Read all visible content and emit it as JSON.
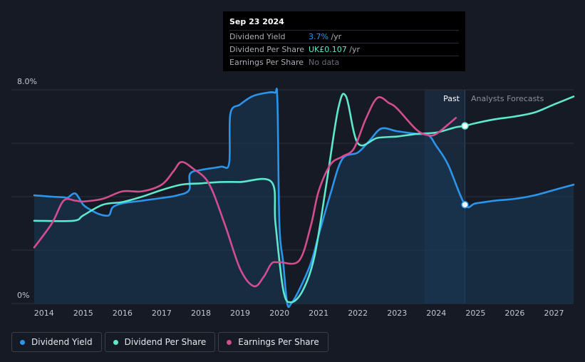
{
  "tooltip": {
    "date": "Sep 23 2024",
    "rows": [
      {
        "label": "Dividend Yield",
        "value": "3.7%",
        "unit": " /yr"
      },
      {
        "label": "Dividend Per Share",
        "value": "UK£0.107",
        "unit": " /yr"
      },
      {
        "label": "Earnings Per Share",
        "value": "No data"
      }
    ]
  },
  "legend": [
    {
      "label": "Dividend Yield",
      "color": "#2c95ea"
    },
    {
      "label": "Dividend Per Share",
      "color": "#5ee8cd"
    },
    {
      "label": "Earnings Per Share",
      "color": "#d34d8f"
    }
  ],
  "chart_data": {
    "type": "line",
    "y_label_top": "8.0%",
    "y_label_bottom": "0%",
    "ylim": [
      0,
      8.0
    ],
    "xlim": [
      2013.75,
      2027.5
    ],
    "past_label": "Past",
    "forecast_label": "Analysts Forecasts",
    "forecast_region_start": 2023.7,
    "now_x": 2024.73,
    "x_ticks": [
      "2014",
      "2015",
      "2016",
      "2017",
      "2018",
      "2019",
      "2020",
      "2021",
      "2022",
      "2023",
      "2024",
      "2025",
      "2026",
      "2027"
    ],
    "series": [
      {
        "name": "Dividend Yield",
        "color": "#2c95ea",
        "filled": true,
        "points": [
          [
            2013.75,
            4.05
          ],
          [
            2014.2,
            4.0
          ],
          [
            2014.5,
            3.98
          ],
          [
            2014.6,
            3.96
          ],
          [
            2014.8,
            4.12
          ],
          [
            2015.0,
            3.7
          ],
          [
            2015.2,
            3.5
          ],
          [
            2015.4,
            3.35
          ],
          [
            2015.65,
            3.3
          ],
          [
            2015.75,
            3.6
          ],
          [
            2016.0,
            3.75
          ],
          [
            2016.5,
            3.85
          ],
          [
            2017.0,
            3.95
          ],
          [
            2017.4,
            4.05
          ],
          [
            2017.7,
            4.25
          ],
          [
            2017.72,
            4.85
          ],
          [
            2018.0,
            5.0
          ],
          [
            2018.5,
            5.12
          ],
          [
            2018.72,
            5.25
          ],
          [
            2018.75,
            7.1
          ],
          [
            2019.0,
            7.45
          ],
          [
            2019.3,
            7.75
          ],
          [
            2019.6,
            7.87
          ],
          [
            2019.88,
            7.89
          ],
          [
            2019.95,
            7.6
          ],
          [
            2020.0,
            3.0
          ],
          [
            2020.1,
            1.5
          ],
          [
            2020.2,
            0.0
          ],
          [
            2020.3,
            0.0
          ],
          [
            2020.5,
            0.5
          ],
          [
            2020.8,
            1.5
          ],
          [
            2021.0,
            2.55
          ],
          [
            2021.3,
            4.1
          ],
          [
            2021.6,
            5.4
          ],
          [
            2022.0,
            5.65
          ],
          [
            2022.3,
            6.1
          ],
          [
            2022.6,
            6.55
          ],
          [
            2023.0,
            6.45
          ],
          [
            2023.5,
            6.35
          ],
          [
            2023.8,
            6.3
          ],
          [
            2024.0,
            5.9
          ],
          [
            2024.3,
            5.2
          ],
          [
            2024.73,
            3.7
          ],
          [
            2025.0,
            3.75
          ],
          [
            2025.5,
            3.85
          ],
          [
            2026.0,
            3.92
          ],
          [
            2026.5,
            4.05
          ],
          [
            2027.0,
            4.25
          ],
          [
            2027.5,
            4.45
          ]
        ]
      },
      {
        "name": "Dividend Per Share",
        "color": "#5ee8cd",
        "filled": false,
        "points": [
          [
            2013.75,
            3.1
          ],
          [
            2014.75,
            3.1
          ],
          [
            2015.0,
            3.3
          ],
          [
            2015.5,
            3.7
          ],
          [
            2016.0,
            3.8
          ],
          [
            2016.5,
            4.0
          ],
          [
            2017.0,
            4.25
          ],
          [
            2017.5,
            4.45
          ],
          [
            2018.0,
            4.5
          ],
          [
            2018.5,
            4.55
          ],
          [
            2019.0,
            4.55
          ],
          [
            2019.8,
            4.55
          ],
          [
            2019.9,
            3.0
          ],
          [
            2020.1,
            0.5
          ],
          [
            2020.3,
            0.05
          ],
          [
            2020.6,
            0.5
          ],
          [
            2020.9,
            1.8
          ],
          [
            2021.2,
            4.5
          ],
          [
            2021.5,
            7.3
          ],
          [
            2021.7,
            7.75
          ],
          [
            2022.0,
            6.0
          ],
          [
            2022.5,
            6.2
          ],
          [
            2023.0,
            6.25
          ],
          [
            2023.5,
            6.35
          ],
          [
            2024.0,
            6.4
          ],
          [
            2024.5,
            6.6
          ],
          [
            2024.73,
            6.65
          ],
          [
            2025.0,
            6.75
          ],
          [
            2025.5,
            6.9
          ],
          [
            2026.0,
            7.0
          ],
          [
            2026.5,
            7.15
          ],
          [
            2027.0,
            7.45
          ],
          [
            2027.5,
            7.75
          ]
        ]
      },
      {
        "name": "Earnings Per Share",
        "color": "#d34d8f",
        "filled": false,
        "points": [
          [
            2013.75,
            2.1
          ],
          [
            2014.2,
            3.0
          ],
          [
            2014.5,
            3.85
          ],
          [
            2014.8,
            3.85
          ],
          [
            2015.0,
            3.82
          ],
          [
            2015.5,
            3.92
          ],
          [
            2016.0,
            4.2
          ],
          [
            2016.5,
            4.2
          ],
          [
            2017.0,
            4.45
          ],
          [
            2017.3,
            4.95
          ],
          [
            2017.5,
            5.3
          ],
          [
            2017.8,
            5.05
          ],
          [
            2018.2,
            4.5
          ],
          [
            2018.6,
            3.0
          ],
          [
            2019.0,
            1.3
          ],
          [
            2019.35,
            0.65
          ],
          [
            2019.6,
            1.0
          ],
          [
            2019.8,
            1.5
          ],
          [
            2020.0,
            1.55
          ],
          [
            2020.5,
            1.6
          ],
          [
            2020.8,
            2.9
          ],
          [
            2021.0,
            4.2
          ],
          [
            2021.3,
            5.2
          ],
          [
            2021.6,
            5.5
          ],
          [
            2021.9,
            5.8
          ],
          [
            2022.2,
            6.9
          ],
          [
            2022.5,
            7.7
          ],
          [
            2022.8,
            7.5
          ],
          [
            2023.0,
            7.3
          ],
          [
            2023.5,
            6.5
          ],
          [
            2023.8,
            6.3
          ],
          [
            2024.0,
            6.35
          ],
          [
            2024.3,
            6.7
          ],
          [
            2024.5,
            6.95
          ]
        ]
      }
    ]
  }
}
